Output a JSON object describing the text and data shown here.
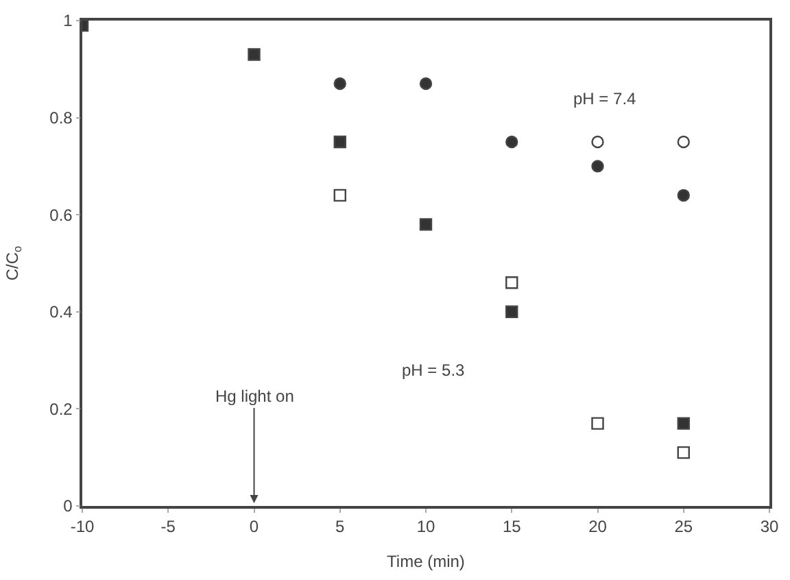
{
  "chart_data": {
    "type": "scatter",
    "xlabel": "Time (min)",
    "ylabel": "C/C$_{o}$",
    "xlim": [
      -10,
      30
    ],
    "xticks": [
      -10,
      -5,
      0,
      5,
      10,
      15,
      20,
      25,
      30
    ],
    "ylim": [
      0,
      1
    ],
    "yticks": [
      0,
      0.2,
      0.4,
      0.6,
      0.8,
      1
    ],
    "legend": false,
    "series": [
      {
        "color": "#333333",
        "marker": "square",
        "x": [
          -10,
          0,
          5,
          10,
          15,
          25
        ],
        "values": [
          0.99,
          0.93,
          0.75,
          0.58,
          0.4,
          0.17
        ]
      },
      {
        "color": "#ffffff",
        "marker": "square",
        "x": [
          5,
          15,
          20,
          25
        ],
        "values": [
          0.64,
          0.46,
          0.17,
          0.11
        ]
      },
      {
        "color": "#333333",
        "marker": "circle",
        "x": [
          5,
          10,
          15,
          20,
          25
        ],
        "values": [
          0.87,
          0.87,
          0.75,
          0.7,
          0.64
        ]
      },
      {
        "color": "#ffffff",
        "marker": "circle",
        "x": [
          20,
          25
        ],
        "values": [
          0.75,
          0.75
        ]
      }
    ],
    "annotations": [
      "pH = 7.4",
      "pH = 5.3",
      "Hg light on"
    ]
  }
}
